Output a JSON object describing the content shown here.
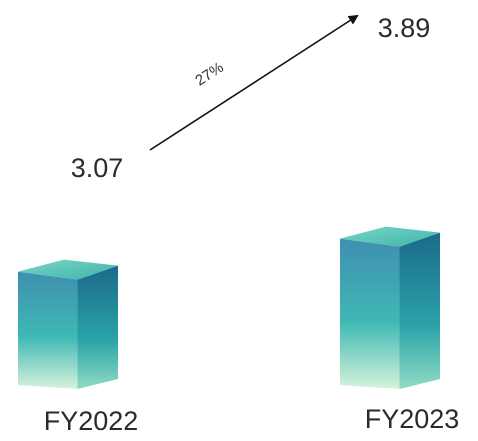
{
  "chart_data": {
    "type": "bar",
    "categories": [
      "FY2022",
      "FY2023"
    ],
    "values": [
      3.07,
      3.89
    ],
    "value_labels": [
      "3.07",
      "3.89"
    ],
    "annotation": {
      "text": "27%",
      "from_category": "FY2022",
      "to_category": "FY2023"
    },
    "grid": false,
    "legend": "none",
    "style": "3d-box",
    "colors": {
      "top": "#5cc9b8",
      "front_top": "#3f8fb0",
      "front_bottom": "#c9efd9",
      "side_top": "#1d6c8a",
      "side_bottom": "#3fbfa8",
      "arrow": "#111111",
      "text": "#2b2b2b"
    }
  }
}
